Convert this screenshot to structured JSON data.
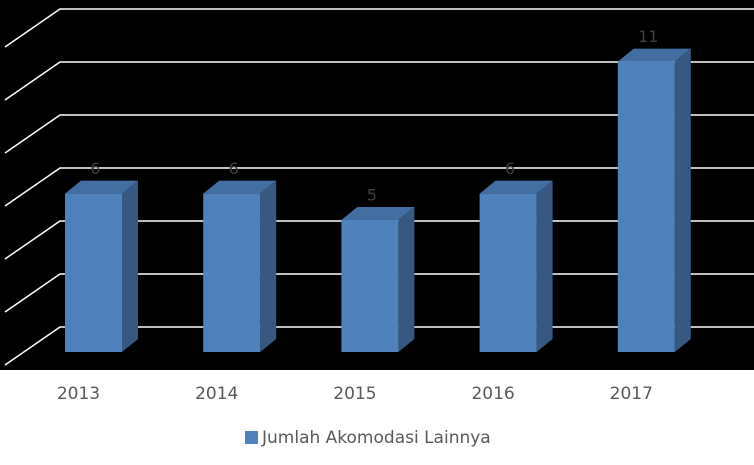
{
  "chart_data": {
    "type": "bar",
    "categories": [
      "2013",
      "2014",
      "2015",
      "2016",
      "2017"
    ],
    "series": [
      {
        "name": "Jumlah Akomodasi Lainnya",
        "color": "#4f81bd",
        "values": [
          6,
          6,
          5,
          6,
          11
        ]
      }
    ],
    "ylim": [
      0,
      12
    ],
    "yticks": [
      0,
      2,
      4,
      6,
      8,
      10,
      12
    ],
    "grid": true,
    "legend": "bottom"
  }
}
